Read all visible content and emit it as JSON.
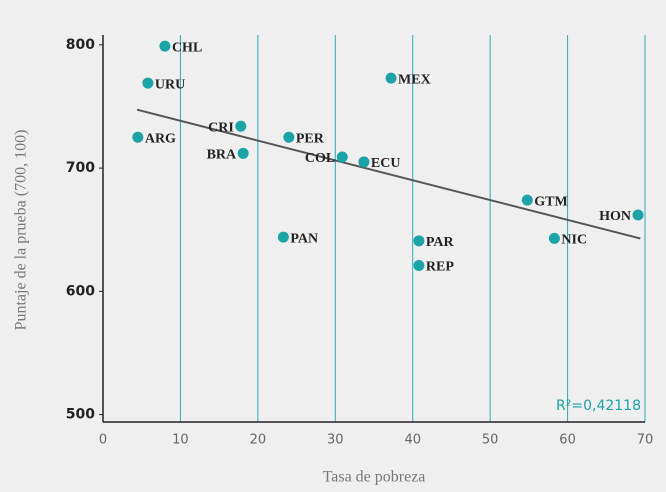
{
  "chart_data": {
    "type": "scatter",
    "x_label": "Tasa de pobreza",
    "y_label": "Puntaje de la prueba (700, 100)",
    "annotation": "R²=0,42118",
    "color": "#1ba3a6",
    "grid_color": "#2aaeb3",
    "grid": true,
    "xlim": [
      0,
      70
    ],
    "xticks": [
      0,
      10,
      20,
      30,
      40,
      50,
      60,
      70
    ],
    "ylim": [
      494,
      808
    ],
    "yticks": [
      500,
      600,
      700,
      800
    ],
    "labels": [
      "CHL",
      "URU",
      "ARG",
      "CRI",
      "BRA",
      "PER",
      "COL",
      "ECU",
      "MEX",
      "PAN",
      "PAR",
      "REP",
      "GTM",
      "NIC",
      "HON"
    ],
    "label_sides": [
      "right",
      "right",
      "right",
      "left",
      "left",
      "right",
      "left",
      "right",
      "right",
      "right",
      "right",
      "right",
      "right",
      "right",
      "left"
    ],
    "x": [
      8.0,
      5.8,
      4.5,
      17.8,
      18.1,
      24.0,
      30.9,
      33.7,
      37.2,
      23.3,
      40.8,
      40.8,
      54.8,
      58.3,
      69.1
    ],
    "y": [
      799,
      769,
      725,
      734,
      712,
      725,
      709,
      705,
      773,
      644,
      641,
      621,
      674,
      643,
      662
    ],
    "trendline": {
      "x": [
        4.4,
        69.4
      ],
      "y": [
        747.4,
        642.9
      ]
    }
  }
}
